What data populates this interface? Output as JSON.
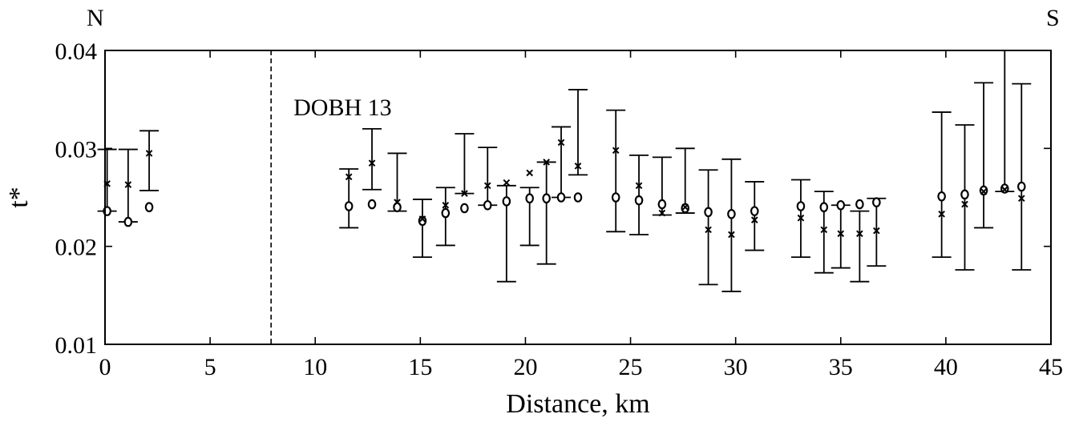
{
  "chart_data": {
    "type": "scatter",
    "xlabel": "Distance, km",
    "ylabel": "t*",
    "xlim": [
      0,
      45
    ],
    "ylim": [
      0.01,
      0.04
    ],
    "xticks": [
      0,
      5,
      10,
      15,
      20,
      25,
      30,
      35,
      40,
      45
    ],
    "yticks": [
      0.01,
      0.02,
      0.03,
      0.04
    ],
    "ytick_labels": [
      "0.01",
      "0.02",
      "0.03",
      "0.04"
    ],
    "corner_labels": {
      "left": "N",
      "right": "S"
    },
    "annotation": "DOBH 13",
    "vline_x": 7.9,
    "grid": false,
    "circles": [
      {
        "x": 0.1,
        "y": 0.0236,
        "lo": 0.0236,
        "hi": 0.0299
      },
      {
        "x": 1.1,
        "y": 0.0225,
        "lo": 0.0225,
        "hi": 0.0299
      },
      {
        "x": 2.1,
        "y": 0.024
      },
      {
        "x": 11.6,
        "y": 0.0241,
        "lo": 0.0219,
        "hi": 0.0279
      },
      {
        "x": 12.7,
        "y": 0.0243
      },
      {
        "x": 13.9,
        "y": 0.024,
        "lo": 0.0236,
        "hi": 0.0295
      },
      {
        "x": 15.1,
        "y": 0.0226,
        "lo": 0.0189,
        "hi": 0.0248
      },
      {
        "x": 16.2,
        "y": 0.0234,
        "lo": 0.0201,
        "hi": 0.026
      },
      {
        "x": 17.1,
        "y": 0.0239
      },
      {
        "x": 18.2,
        "y": 0.0242,
        "lo": 0.0242,
        "hi": 0.0301
      },
      {
        "x": 19.1,
        "y": 0.0246,
        "lo": 0.0164,
        "hi": 0.0262
      },
      {
        "x": 20.2,
        "y": 0.0249,
        "lo": 0.0201,
        "hi": 0.026
      },
      {
        "x": 21.0,
        "y": 0.0249,
        "lo": 0.0182,
        "hi": 0.0286
      },
      {
        "x": 21.7,
        "y": 0.025,
        "lo": 0.025,
        "hi": 0.0322
      },
      {
        "x": 22.5,
        "y": 0.025
      },
      {
        "x": 24.3,
        "y": 0.025,
        "lo": 0.0215,
        "hi": 0.0339
      },
      {
        "x": 25.4,
        "y": 0.0247,
        "lo": 0.0212,
        "hi": 0.0293
      },
      {
        "x": 26.5,
        "y": 0.0243,
        "lo": 0.0232,
        "hi": 0.0291
      },
      {
        "x": 27.6,
        "y": 0.0239,
        "lo": 0.0234,
        "hi": 0.03
      },
      {
        "x": 28.7,
        "y": 0.0235,
        "lo": 0.0161,
        "hi": 0.0278
      },
      {
        "x": 29.8,
        "y": 0.0233,
        "lo": 0.0154,
        "hi": 0.0289
      },
      {
        "x": 30.9,
        "y": 0.0236,
        "lo": 0.0196,
        "hi": 0.0266
      },
      {
        "x": 33.1,
        "y": 0.0241,
        "lo": 0.0189,
        "hi": 0.0268
      },
      {
        "x": 34.2,
        "y": 0.024,
        "lo": 0.0173,
        "hi": 0.0256
      },
      {
        "x": 35.0,
        "y": 0.0242,
        "lo": 0.0178,
        "hi": 0.0242
      },
      {
        "x": 35.9,
        "y": 0.0243
      },
      {
        "x": 36.7,
        "y": 0.0245,
        "lo": 0.018,
        "hi": 0.0249
      },
      {
        "x": 39.8,
        "y": 0.0251,
        "lo": 0.0189,
        "hi": 0.0337
      },
      {
        "x": 40.9,
        "y": 0.0253,
        "lo": 0.0176,
        "hi": 0.0324
      },
      {
        "x": 41.8,
        "y": 0.0257,
        "lo": 0.0219,
        "hi": 0.0367
      },
      {
        "x": 42.8,
        "y": 0.0259,
        "lo": 0.0256,
        "hi": 0.0405
      },
      {
        "x": 43.6,
        "y": 0.0261,
        "lo": 0.0176,
        "hi": 0.0366
      }
    ],
    "crosses": [
      {
        "x": 0.1,
        "y": 0.0264
      },
      {
        "x": 1.1,
        "y": 0.0263
      },
      {
        "x": 2.1,
        "y": 0.0295,
        "lo": 0.0257,
        "hi": 0.0318
      },
      {
        "x": 11.6,
        "y": 0.0271
      },
      {
        "x": 12.7,
        "y": 0.0285,
        "lo": 0.0258,
        "hi": 0.032
      },
      {
        "x": 13.9,
        "y": 0.0245
      },
      {
        "x": 15.1,
        "y": 0.0228
      },
      {
        "x": 16.2,
        "y": 0.0242
      },
      {
        "x": 17.1,
        "y": 0.0254,
        "lo": 0.0254,
        "hi": 0.0315
      },
      {
        "x": 18.2,
        "y": 0.0262
      },
      {
        "x": 19.1,
        "y": 0.0265
      },
      {
        "x": 20.2,
        "y": 0.0275
      },
      {
        "x": 21.0,
        "y": 0.0286
      },
      {
        "x": 21.7,
        "y": 0.0306
      },
      {
        "x": 22.5,
        "y": 0.0282,
        "lo": 0.0273,
        "hi": 0.036
      },
      {
        "x": 24.3,
        "y": 0.0298
      },
      {
        "x": 25.4,
        "y": 0.0262
      },
      {
        "x": 26.5,
        "y": 0.0234
      },
      {
        "x": 27.6,
        "y": 0.024
      },
      {
        "x": 28.7,
        "y": 0.0217
      },
      {
        "x": 29.8,
        "y": 0.0212
      },
      {
        "x": 30.9,
        "y": 0.0227
      },
      {
        "x": 33.1,
        "y": 0.0229
      },
      {
        "x": 34.2,
        "y": 0.0217
      },
      {
        "x": 35.0,
        "y": 0.0213
      },
      {
        "x": 35.9,
        "y": 0.0213,
        "lo": 0.0164,
        "hi": 0.0236
      },
      {
        "x": 36.7,
        "y": 0.0216
      },
      {
        "x": 39.8,
        "y": 0.0233
      },
      {
        "x": 40.9,
        "y": 0.0243
      },
      {
        "x": 41.8,
        "y": 0.0256
      },
      {
        "x": 42.8,
        "y": 0.0258
      },
      {
        "x": 43.6,
        "y": 0.0249
      }
    ]
  }
}
